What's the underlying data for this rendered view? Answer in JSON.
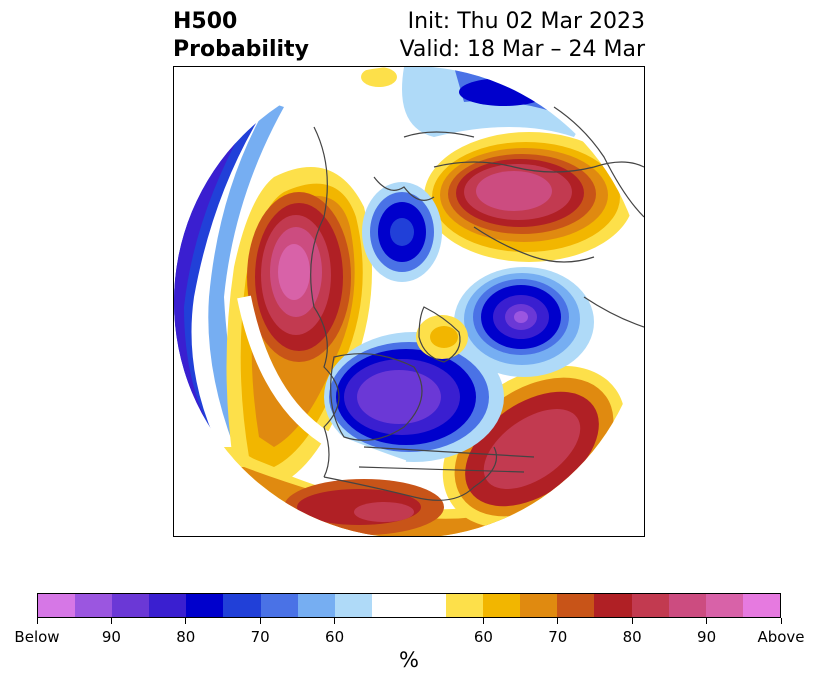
{
  "title": {
    "left_line1": "H500",
    "left_line2": "Probability",
    "right_line1": "Init: Thu 02 Mar 2023",
    "right_line2": "Valid: 18 Mar – 24 Mar"
  },
  "map": {
    "projection": "north-polar-stereographic",
    "background": "#ffffff",
    "coastline_color": "#444444"
  },
  "colorbar": {
    "unit": "%",
    "below_colors": [
      "#d677e6",
      "#9b56e0",
      "#6b38d6",
      "#3a1fd0",
      "#0000cc",
      "#2140d8",
      "#4a72e6",
      "#76aef2",
      "#afdaf8"
    ],
    "neutral_color": "#ffffff",
    "above_colors": [
      "#fde04a",
      "#f2b600",
      "#e08a10",
      "#c85418",
      "#b02025",
      "#c23a50",
      "#cc4c80",
      "#d862a8",
      "#e67ae0"
    ],
    "tick_labels": [
      "Below",
      "90",
      "80",
      "70",
      "60",
      "60",
      "70",
      "80",
      "90",
      "Above"
    ]
  }
}
